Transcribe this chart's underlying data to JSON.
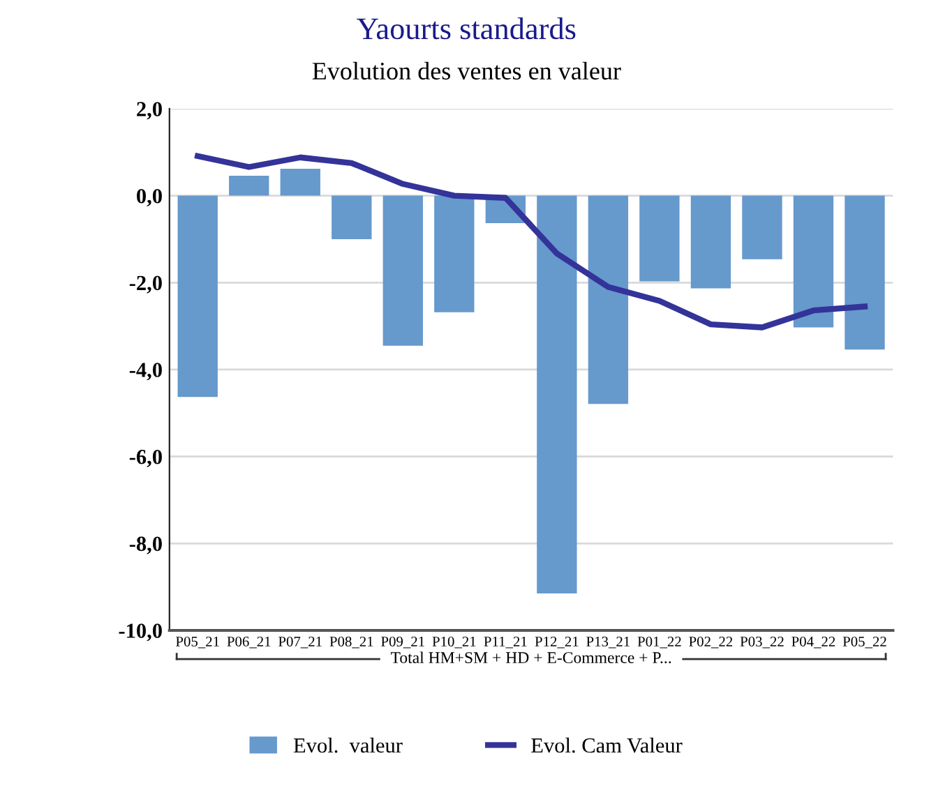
{
  "chart_data": {
    "type": "bar",
    "title": "Yaourts standards",
    "subtitle": "Evolution des ventes en valeur",
    "categories": [
      "P05_21",
      "P06_21",
      "P07_21",
      "P08_21",
      "P09_21",
      "P10_21",
      "P11_21",
      "P12_21",
      "P13_21",
      "P01_22",
      "P02_22",
      "P03_22",
      "P04_22",
      "P05_22"
    ],
    "series": [
      {
        "name": "Evol.  valeur",
        "color": "#6699cc",
        "values": [
          -4.63,
          0.46,
          0.62,
          -1.0,
          -3.45,
          -2.68,
          -0.63,
          -9.15,
          -4.79,
          -1.97,
          -2.13,
          -1.46,
          -3.03,
          -3.54
        ]
      },
      {
        "name": "Evol. Cam Valeur",
        "type": "line",
        "color": "#333399",
        "values": [
          0.91,
          0.66,
          0.88,
          0.75,
          0.27,
          0.0,
          -0.05,
          -1.33,
          -2.1,
          -2.42,
          -2.96,
          -3.03,
          -2.64,
          -2.55
        ]
      }
    ],
    "ylim": [
      -10,
      2
    ],
    "yticks": [
      {
        "value": -10,
        "label": "-10,0"
      },
      {
        "value": -8,
        "label": "-8,0"
      },
      {
        "value": -6,
        "label": "-6,0"
      },
      {
        "value": -4,
        "label": "-4,0"
      },
      {
        "value": -2,
        "label": "-2,0"
      },
      {
        "value": 0,
        "label": "0,0"
      },
      {
        "value": 2,
        "label": "2,0"
      }
    ],
    "grid": "y",
    "legend": "bottom",
    "marker": "none",
    "line_style": "solid",
    "annotations": [
      "Total HM+SM + HD + E-Commerce + P..."
    ]
  }
}
